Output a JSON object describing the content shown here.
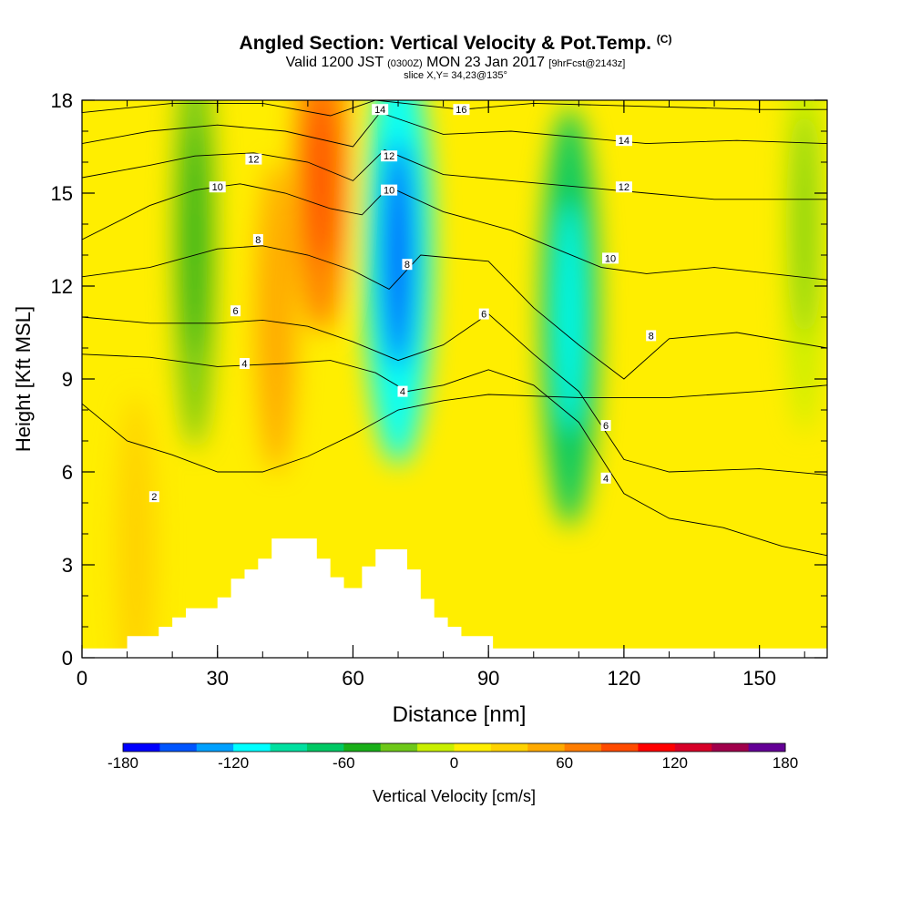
{
  "title": {
    "main": "Angled Section: Vertical Velocity & Pot.Temp.",
    "main_suffix": "(C)",
    "valid_a": "Valid 1200 JST",
    "valid_b": "(0300Z)",
    "valid_c": "MON 23 Jan 2017",
    "valid_d": "[9hrFcst@2143z]",
    "slice": "slice X,Y= 34,23@135°"
  },
  "chart_data": {
    "type": "heatmap",
    "xlabel": "Distance [nm]",
    "ylabel": "Height [Kft MSL]",
    "xlim": [
      0,
      165
    ],
    "ylim": [
      0,
      18
    ],
    "x_ticks": [
      0,
      30,
      60,
      90,
      120,
      150
    ],
    "y_ticks": [
      0,
      3,
      6,
      9,
      12,
      15,
      18
    ],
    "colorbar": {
      "label": "Vertical Velocity [cm/s]",
      "min": -180,
      "max": 180,
      "step": 20,
      "tick_values": [
        -180,
        -120,
        -60,
        0,
        60,
        120,
        180
      ],
      "colors": [
        "#0000ff",
        "#0055ff",
        "#00a0ff",
        "#00ffff",
        "#00e0a0",
        "#00c864",
        "#19af19",
        "#6ec819",
        "#c8ef00",
        "#ffee00",
        "#ffd200",
        "#ffaa00",
        "#ff7d00",
        "#ff4b00",
        "#ff0000",
        "#d70028",
        "#a0004b",
        "#640096"
      ]
    },
    "velocity_features": [
      {
        "x": 25,
        "height": 13.5,
        "value": -40,
        "kind": "downdraft"
      },
      {
        "x": 43,
        "height": 11,
        "value": 40,
        "kind": "updraft"
      },
      {
        "x": 53,
        "height": 15.5,
        "value": 70,
        "kind": "updraft"
      },
      {
        "x": 70,
        "height": 13,
        "value": -110,
        "kind": "downdraft"
      },
      {
        "x": 108,
        "height": 11,
        "value": -80,
        "kind": "downdraft"
      },
      {
        "x": 12,
        "height": 3.5,
        "value": 30,
        "kind": "updraft"
      },
      {
        "x": 160,
        "height": 14,
        "value": -20,
        "kind": "downdraft"
      }
    ],
    "terrain": [
      [
        0,
        0.3
      ],
      [
        10,
        0.3
      ],
      [
        10,
        0.7
      ],
      [
        17,
        0.7
      ],
      [
        17,
        1.0
      ],
      [
        20,
        1.0
      ],
      [
        20,
        1.3
      ],
      [
        23,
        1.3
      ],
      [
        23,
        1.6
      ],
      [
        30,
        1.6
      ],
      [
        30,
        1.95
      ],
      [
        33,
        1.95
      ],
      [
        33,
        2.55
      ],
      [
        36,
        2.55
      ],
      [
        36,
        2.85
      ],
      [
        39,
        2.85
      ],
      [
        39,
        3.2
      ],
      [
        42,
        3.2
      ],
      [
        42,
        3.85
      ],
      [
        52,
        3.85
      ],
      [
        52,
        3.2
      ],
      [
        55,
        3.2
      ],
      [
        55,
        2.6
      ],
      [
        58,
        2.6
      ],
      [
        58,
        2.25
      ],
      [
        62,
        2.25
      ],
      [
        62,
        2.95
      ],
      [
        65,
        2.95
      ],
      [
        65,
        3.5
      ],
      [
        72,
        3.5
      ],
      [
        72,
        2.85
      ],
      [
        75,
        2.85
      ],
      [
        75,
        1.9
      ],
      [
        78,
        1.9
      ],
      [
        78,
        1.3
      ],
      [
        81,
        1.3
      ],
      [
        81,
        1.0
      ],
      [
        84,
        1.0
      ],
      [
        84,
        0.7
      ],
      [
        91,
        0.7
      ],
      [
        91,
        0.3
      ],
      [
        165,
        0.3
      ]
    ],
    "potential_temperature_contours": [
      {
        "value": 2,
        "label_x": 16,
        "points": [
          [
            0,
            8.2
          ],
          [
            10,
            7.0
          ],
          [
            20,
            6.55
          ],
          [
            30,
            6.0
          ],
          [
            40,
            6.0
          ],
          [
            50,
            6.5
          ],
          [
            60,
            7.2
          ],
          [
            70,
            8.0
          ],
          [
            80,
            8.3
          ],
          [
            90,
            8.5
          ],
          [
            110,
            8.4
          ],
          [
            130,
            8.4
          ],
          [
            150,
            8.6
          ],
          [
            165,
            8.8
          ]
        ]
      },
      {
        "value": 4,
        "label_x": 36,
        "points": [
          [
            0,
            9.8
          ],
          [
            15,
            9.7
          ],
          [
            30,
            9.4
          ],
          [
            45,
            9.5
          ],
          [
            55,
            9.6
          ],
          [
            65,
            9.2
          ],
          [
            72,
            8.6
          ],
          [
            80,
            8.8
          ],
          [
            90,
            9.3
          ],
          [
            100,
            8.8
          ],
          [
            110,
            7.6
          ],
          [
            120,
            5.3
          ],
          [
            130,
            4.5
          ],
          [
            142,
            4.2
          ],
          [
            155,
            3.6
          ],
          [
            165,
            3.3
          ]
        ]
      },
      {
        "value": 6,
        "label_x": 34,
        "points": [
          [
            0,
            11.0
          ],
          [
            15,
            10.8
          ],
          [
            30,
            10.8
          ],
          [
            40,
            10.9
          ],
          [
            50,
            10.7
          ],
          [
            60,
            10.2
          ],
          [
            70,
            9.6
          ],
          [
            80,
            10.1
          ],
          [
            90,
            11.1
          ],
          [
            100,
            9.8
          ],
          [
            110,
            8.6
          ],
          [
            120,
            6.4
          ],
          [
            130,
            6.0
          ],
          [
            150,
            6.1
          ],
          [
            165,
            5.9
          ]
        ]
      },
      {
        "value": 8,
        "label_x": 39,
        "points": [
          [
            0,
            12.3
          ],
          [
            15,
            12.6
          ],
          [
            30,
            13.2
          ],
          [
            40,
            13.3
          ],
          [
            50,
            13.0
          ],
          [
            60,
            12.5
          ],
          [
            68,
            11.9
          ],
          [
            75,
            13.0
          ],
          [
            90,
            12.8
          ],
          [
            100,
            11.3
          ],
          [
            110,
            10.1
          ],
          [
            120,
            9.0
          ],
          [
            130,
            10.3
          ],
          [
            145,
            10.5
          ],
          [
            165,
            10.0
          ]
        ]
      },
      {
        "value": 10,
        "label_x": 30,
        "points": [
          [
            0,
            13.5
          ],
          [
            15,
            14.6
          ],
          [
            25,
            15.1
          ],
          [
            35,
            15.3
          ],
          [
            45,
            15.0
          ],
          [
            55,
            14.5
          ],
          [
            62,
            14.3
          ],
          [
            68,
            15.2
          ],
          [
            80,
            14.4
          ],
          [
            95,
            13.8
          ],
          [
            105,
            13.2
          ],
          [
            115,
            12.6
          ],
          [
            125,
            12.4
          ],
          [
            140,
            12.6
          ],
          [
            165,
            12.2
          ]
        ]
      },
      {
        "value": 12,
        "label_x": 38,
        "points": [
          [
            0,
            15.5
          ],
          [
            15,
            15.9
          ],
          [
            25,
            16.2
          ],
          [
            38,
            16.3
          ],
          [
            50,
            16.0
          ],
          [
            60,
            15.4
          ],
          [
            67,
            16.4
          ],
          [
            80,
            15.6
          ],
          [
            95,
            15.4
          ],
          [
            110,
            15.2
          ],
          [
            125,
            15.0
          ],
          [
            140,
            14.8
          ],
          [
            165,
            14.8
          ]
        ]
      },
      {
        "value": 14,
        "label_x": 120,
        "points": [
          [
            0,
            16.6
          ],
          [
            15,
            17.0
          ],
          [
            30,
            17.2
          ],
          [
            45,
            17.0
          ],
          [
            60,
            16.5
          ],
          [
            66,
            17.6
          ],
          [
            80,
            16.9
          ],
          [
            95,
            17.0
          ],
          [
            110,
            16.8
          ],
          [
            125,
            16.6
          ],
          [
            145,
            16.7
          ],
          [
            165,
            16.6
          ]
        ]
      },
      {
        "value": 16,
        "label_x": 84,
        "points": [
          [
            0,
            17.6
          ],
          [
            20,
            17.9
          ],
          [
            40,
            17.9
          ],
          [
            55,
            17.5
          ],
          [
            65,
            18.0
          ],
          [
            84,
            17.7
          ],
          [
            100,
            17.9
          ],
          [
            125,
            17.8
          ],
          [
            150,
            17.7
          ],
          [
            165,
            17.7
          ]
        ]
      }
    ],
    "contour_labels": [
      {
        "text": "2",
        "x": 16,
        "y": 5.2
      },
      {
        "text": "4",
        "x": 36,
        "y": 9.5
      },
      {
        "text": "6",
        "x": 34,
        "y": 11.2
      },
      {
        "text": "8",
        "x": 39,
        "y": 13.5
      },
      {
        "text": "10",
        "x": 30,
        "y": 15.2
      },
      {
        "text": "12",
        "x": 38,
        "y": 16.1
      },
      {
        "text": "4",
        "x": 71,
        "y": 8.6
      },
      {
        "text": "8",
        "x": 72,
        "y": 12.7
      },
      {
        "text": "10",
        "x": 68,
        "y": 15.1
      },
      {
        "text": "12",
        "x": 68,
        "y": 16.2
      },
      {
        "text": "14",
        "x": 66,
        "y": 17.7
      },
      {
        "text": "16",
        "x": 84,
        "y": 17.7
      },
      {
        "text": "14",
        "x": 120,
        "y": 16.7
      },
      {
        "text": "12",
        "x": 120,
        "y": 15.2
      },
      {
        "text": "10",
        "x": 117,
        "y": 12.9
      },
      {
        "text": "8",
        "x": 126,
        "y": 10.4
      },
      {
        "text": "6",
        "x": 89,
        "y": 11.1
      },
      {
        "text": "6",
        "x": 116,
        "y": 7.5
      },
      {
        "text": "4",
        "x": 116,
        "y": 5.8
      }
    ]
  }
}
